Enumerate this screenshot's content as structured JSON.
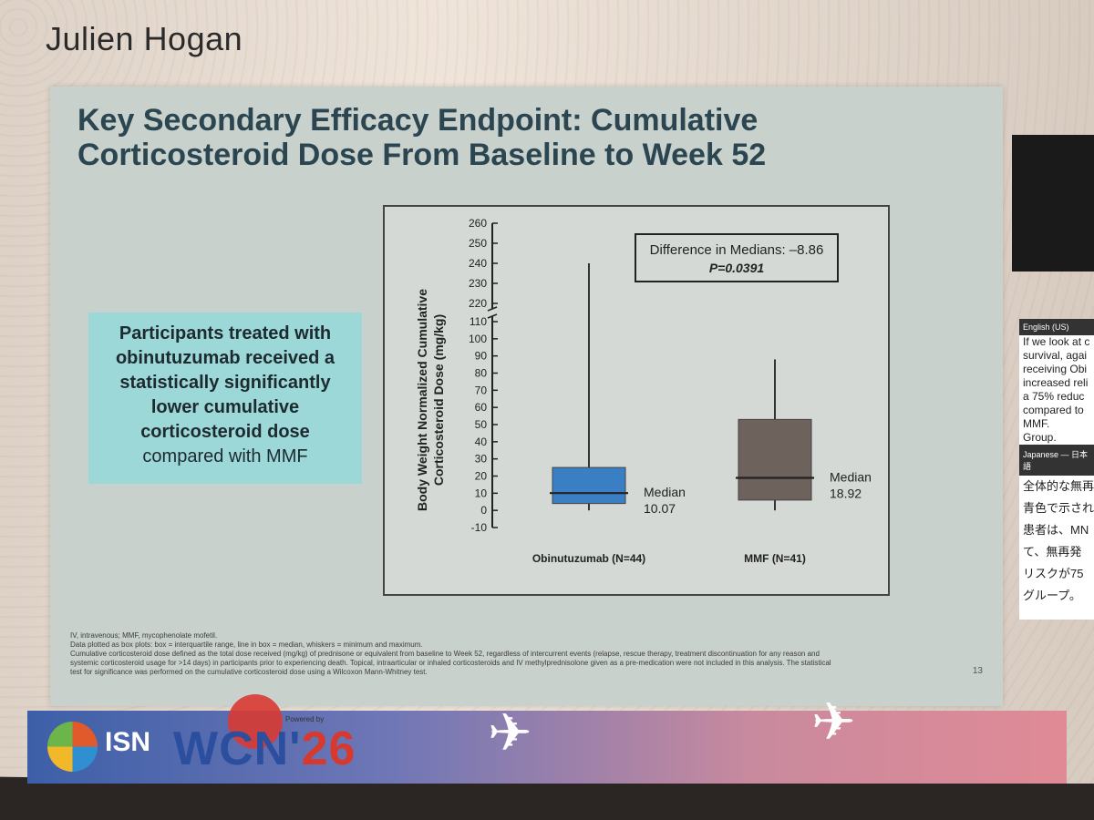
{
  "presenter": "Julien Hogan",
  "slide": {
    "title_line1": "Key Secondary Efficacy Endpoint: Cumulative",
    "title_line2": "Corticosteroid Dose From Baseline to Week 52",
    "callout": {
      "line1": "Participants treated with",
      "line2": "obinutuzumab received a",
      "line3": "statistically significantly",
      "line4": "lower cumulative",
      "line5": "corticosteroid dose",
      "line6": "compared with MMF"
    },
    "footnote_lines": [
      "IV, intravenous; MMF, mycophenolate mofetil.",
      "Data plotted as box plots: box = interquartile range, line in box = median, whiskers = minimum and maximum.",
      "Cumulative corticosteroid dose defined as the total dose received (mg/kg) of prednisone or equivalent from baseline to Week 52, regardless of intercurrent events (relapse, rescue therapy, treatment discontinuation for any reason and",
      "systemic corticosteroid usage for >14 days) in participants prior to experiencing death. Topical, intraarticular or inhaled corticosteroids and IV methylprednisolone given as a pre-medication were not included in this analysis. The statistical",
      "test for significance was performed on the cumulative corticosteroid dose using a Wilcoxon Mann-Whitney test."
    ],
    "page_number": "13"
  },
  "chart_data": {
    "type": "box",
    "ylabel_line1": "Body Weight Normalized Cumulative",
    "ylabel_line2": "Corticosteroid Dose (mg/kg)",
    "yticks_lower": [
      -10,
      0,
      10,
      20,
      30,
      40,
      50,
      60,
      70,
      80,
      90,
      100,
      110
    ],
    "yticks_upper": [
      220,
      230,
      240,
      250,
      260
    ],
    "axis_break": true,
    "annotation_line1": "Difference in Medians: –8.86",
    "annotation_line2": "P=0.0391",
    "groups": [
      {
        "label": "Obinutuzumab (N=44)",
        "min": 0,
        "q1": 4,
        "median": 10.07,
        "q3": 25,
        "max": 240,
        "median_label": "Median",
        "median_value": "10.07",
        "color": "#3a7fc4"
      },
      {
        "label": "MMF (N=41)",
        "min": 0,
        "q1": 6,
        "median": 18.92,
        "q3": 53,
        "max": 88,
        "median_label": "Median",
        "median_value": "18.92",
        "color": "#6e625c"
      }
    ]
  },
  "banner": {
    "isn": "ISN",
    "wcn": "WCN'",
    "year": "26",
    "powered": "Powered by"
  },
  "transcript": {
    "header_en": "English (US)",
    "lines_en": [
      "If we look at c",
      "survival, agai",
      "receiving Obi",
      "increased reli",
      "a 75% reduc",
      "compared to",
      "MMF.",
      "Group."
    ],
    "header_ja": "Japanese — 日本語",
    "lines_ja": [
      "全体的な無再",
      "青色で示され",
      "患者は、MN",
      "て、無再発",
      "リスクが75",
      "グループ。"
    ]
  }
}
